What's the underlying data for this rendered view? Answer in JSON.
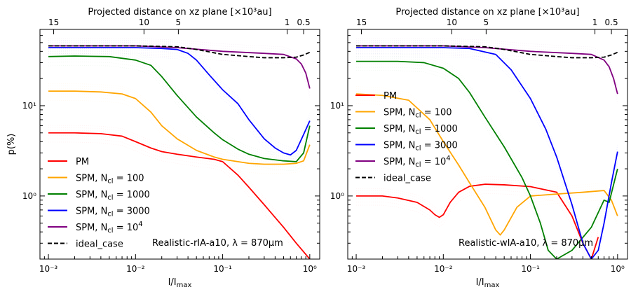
{
  "chart_data": [
    {
      "type": "line",
      "panel": "left",
      "xscale": "log",
      "yscale": "log",
      "xlim": [
        0.0008,
        1.3
      ],
      "ylim": [
        0.2,
        70
      ],
      "xlabel": "I/I",
      "xlabel_sub": "max",
      "ylabel": "p(%)",
      "top_axis_title": "Projected distance on xz plane [×10³au]",
      "top_ticks": [
        {
          "label": "15",
          "x": 0.00115
        },
        {
          "label": "10",
          "x": 0.0125
        },
        {
          "label": "5",
          "x": 0.031
        },
        {
          "label": "1",
          "x": 0.55
        },
        {
          "label": "0.5",
          "x": 0.85
        }
      ],
      "x_tick_labels": [
        "10⁻³",
        "10⁻²",
        "10⁻¹",
        "10⁰"
      ],
      "y_tick_labels": [
        "10⁰",
        "10¹"
      ],
      "annotation": "Realistic-rIA-a10, λ = 870μm",
      "legend_position": "lower-left",
      "series": [
        {
          "name": "PM",
          "label": "PM",
          "color": "#ff0000",
          "x": [
            0.001,
            0.002,
            0.004,
            0.007,
            0.01,
            0.015,
            0.02,
            0.03,
            0.05,
            0.08,
            0.1,
            0.15,
            0.2,
            0.3,
            0.5,
            0.7,
            1.0
          ],
          "y": [
            5,
            5,
            4.9,
            4.6,
            4.0,
            3.4,
            3.1,
            2.9,
            2.7,
            2.55,
            2.4,
            1.7,
            1.25,
            0.8,
            0.45,
            0.3,
            0.2
          ]
        },
        {
          "name": "SPM, Ncl = 100",
          "label": "SPM, N",
          "sub": "cl",
          "suffix": " = 100",
          "color": "#ffa500",
          "x": [
            0.001,
            0.002,
            0.004,
            0.007,
            0.01,
            0.015,
            0.02,
            0.03,
            0.05,
            0.08,
            0.1,
            0.2,
            0.3,
            0.5,
            0.7,
            0.85,
            1.0
          ],
          "y": [
            14.5,
            14.5,
            14.2,
            13.5,
            12.0,
            8.5,
            6.0,
            4.3,
            3.2,
            2.7,
            2.55,
            2.3,
            2.25,
            2.25,
            2.3,
            2.45,
            3.7
          ]
        },
        {
          "name": "SPM, Ncl = 1000",
          "label": "SPM, N",
          "sub": "cl",
          "suffix": " = 1000",
          "color": "#008000",
          "x": [
            0.001,
            0.002,
            0.005,
            0.01,
            0.015,
            0.02,
            0.03,
            0.05,
            0.08,
            0.1,
            0.15,
            0.2,
            0.3,
            0.5,
            0.7,
            0.85,
            1.0
          ],
          "y": [
            35,
            35.5,
            35,
            32,
            28,
            21,
            13,
            7.5,
            5.0,
            4.2,
            3.3,
            2.9,
            2.6,
            2.45,
            2.4,
            3.0,
            6.0
          ]
        },
        {
          "name": "SPM, Ncl = 3000",
          "label": "SPM, N",
          "sub": "cl",
          "suffix": " = 3000",
          "color": "#0000ff",
          "x": [
            0.001,
            0.003,
            0.01,
            0.02,
            0.03,
            0.04,
            0.05,
            0.07,
            0.1,
            0.15,
            0.2,
            0.3,
            0.4,
            0.5,
            0.6,
            0.7,
            0.85,
            1.0
          ],
          "y": [
            44,
            44,
            44,
            43,
            42,
            38,
            32,
            22,
            15,
            10.5,
            7,
            4.3,
            3.4,
            3.0,
            2.85,
            3.2,
            4.8,
            6.8
          ]
        },
        {
          "name": "SPM, Ncl = 10^4",
          "label": "SPM, N",
          "sub": "cl",
          "suffix": " = 10",
          "sup": "4",
          "color": "#800080",
          "x": [
            0.001,
            0.01,
            0.03,
            0.1,
            0.3,
            0.5,
            0.7,
            0.8,
            0.9,
            1.0
          ],
          "y": [
            46,
            46,
            44,
            40,
            38,
            37,
            33,
            29,
            23,
            15.5
          ]
        },
        {
          "name": "ideal_case",
          "label": "ideal_case",
          "color": "#000000",
          "dashed": true,
          "x": [
            0.001,
            0.01,
            0.03,
            0.05,
            0.1,
            0.2,
            0.3,
            0.5,
            0.7,
            0.85,
            1.0
          ],
          "y": [
            46,
            46,
            45,
            42,
            37,
            35,
            34,
            34,
            34.5,
            36.5,
            39
          ]
        }
      ]
    },
    {
      "type": "line",
      "panel": "right",
      "xscale": "log",
      "yscale": "log",
      "xlim": [
        0.0008,
        1.3
      ],
      "ylim": [
        0.2,
        70
      ],
      "xlabel": "I/I",
      "xlabel_sub": "max",
      "ylabel": "",
      "top_axis_title": "Projected distance on xz plane [×10³au]",
      "top_ticks": [
        {
          "label": "15",
          "x": 0.00115
        },
        {
          "label": "10",
          "x": 0.0125
        },
        {
          "label": "5",
          "x": 0.031
        },
        {
          "label": "1",
          "x": 0.55
        },
        {
          "label": "0.5",
          "x": 0.85
        }
      ],
      "x_tick_labels": [
        "10⁻³",
        "10⁻²",
        "10⁻¹",
        "10⁰"
      ],
      "y_tick_labels": [
        "10⁰",
        "10¹"
      ],
      "annotation": "Realistic-wIA-a10, λ = 870μm",
      "legend_position": "center-left",
      "series": [
        {
          "name": "PM",
          "label": "PM",
          "color": "#ff0000",
          "x": [
            0.001,
            0.002,
            0.003,
            0.005,
            0.007,
            0.008,
            0.009,
            0.01,
            0.012,
            0.015,
            0.02,
            0.03,
            0.05,
            0.1,
            0.2,
            0.3,
            0.4,
            0.5,
            0.6
          ],
          "y": [
            1.0,
            1.0,
            0.95,
            0.85,
            0.7,
            0.62,
            0.58,
            0.62,
            0.85,
            1.1,
            1.28,
            1.35,
            1.33,
            1.27,
            1.1,
            0.6,
            0.3,
            0.2,
            0.35
          ]
        },
        {
          "name": "SPM, Ncl = 100",
          "label": "SPM, N",
          "sub": "cl",
          "suffix": " = 100",
          "color": "#ffa500",
          "x": [
            0.001,
            0.002,
            0.004,
            0.007,
            0.01,
            0.015,
            0.02,
            0.03,
            0.04,
            0.045,
            0.05,
            0.07,
            0.1,
            0.2,
            0.4,
            0.7,
            0.85,
            1.0
          ],
          "y": [
            13.5,
            13.0,
            11.5,
            7.0,
            4.0,
            2.2,
            1.4,
            0.75,
            0.42,
            0.37,
            0.42,
            0.75,
            1.0,
            1.05,
            1.1,
            1.15,
            0.9,
            0.6
          ]
        },
        {
          "name": "SPM, Ncl = 1000",
          "label": "SPM, N",
          "sub": "cl",
          "suffix": " = 1000",
          "color": "#008000",
          "x": [
            0.001,
            0.003,
            0.006,
            0.01,
            0.015,
            0.02,
            0.03,
            0.05,
            0.08,
            0.1,
            0.13,
            0.16,
            0.2,
            0.3,
            0.5,
            0.7,
            0.8,
            1.0
          ],
          "y": [
            31,
            31,
            30,
            26,
            20,
            14,
            7.5,
            3.5,
            1.6,
            1.0,
            0.5,
            0.25,
            0.2,
            0.25,
            0.45,
            0.9,
            0.85,
            2.0
          ]
        },
        {
          "name": "SPM, Ncl = 3000",
          "label": "SPM, N",
          "sub": "cl",
          "suffix": " = 3000",
          "color": "#0000ff",
          "x": [
            0.001,
            0.005,
            0.01,
            0.02,
            0.04,
            0.06,
            0.1,
            0.15,
            0.2,
            0.3,
            0.4,
            0.5,
            0.6,
            0.7,
            0.85,
            1.0
          ],
          "y": [
            44,
            44,
            44,
            43,
            37,
            25,
            12,
            5.5,
            2.7,
            0.8,
            0.3,
            0.2,
            0.25,
            0.5,
            1.4,
            3.1
          ]
        },
        {
          "name": "SPM, Ncl = 10^4",
          "label": "SPM, N",
          "sub": "cl",
          "suffix": " = 10",
          "sup": "4",
          "color": "#800080",
          "x": [
            0.001,
            0.01,
            0.03,
            0.1,
            0.3,
            0.5,
            0.7,
            0.8,
            0.9,
            1.0
          ],
          "y": [
            46,
            46,
            44,
            40,
            38,
            37,
            32,
            27,
            20,
            13.5
          ]
        },
        {
          "name": "ideal_case",
          "label": "ideal_case",
          "color": "#000000",
          "dashed": true,
          "x": [
            0.001,
            0.01,
            0.03,
            0.05,
            0.1,
            0.2,
            0.3,
            0.5,
            0.7,
            0.85,
            1.0
          ],
          "y": [
            46,
            46,
            45,
            42,
            37,
            35,
            34,
            34,
            34.5,
            36.5,
            39
          ]
        }
      ]
    }
  ]
}
